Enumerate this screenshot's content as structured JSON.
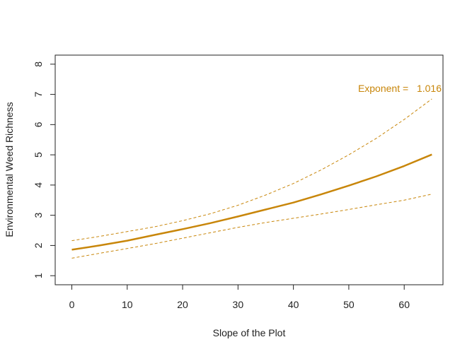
{
  "chart_data": {
    "type": "line",
    "title": "",
    "xlabel": "Slope of the Plot",
    "ylabel": "Environmental Weed Richness",
    "xlim": [
      -3,
      67
    ],
    "ylim": [
      0.7,
      8.3
    ],
    "x_ticks": [
      0,
      10,
      20,
      30,
      40,
      50,
      60
    ],
    "y_ticks": [
      1,
      2,
      3,
      4,
      5,
      6,
      7,
      8
    ],
    "grid": false,
    "color": "#C8860A",
    "annotation": {
      "label": "Exponent = ",
      "value": "1.016"
    },
    "fit_exponent": 1.016,
    "series": [
      {
        "role": "fit",
        "style": "solid",
        "x": [
          0,
          5,
          10,
          15,
          20,
          25,
          30,
          35,
          40,
          45,
          50,
          55,
          60,
          65
        ],
        "y": [
          1.86,
          2.0,
          2.16,
          2.35,
          2.54,
          2.74,
          2.96,
          3.19,
          3.42,
          3.69,
          3.98,
          4.29,
          4.63,
          5.01
        ]
      },
      {
        "role": "upper-ci",
        "style": "dashed",
        "x": [
          0,
          5,
          10,
          15,
          20,
          25,
          30,
          35,
          40,
          45,
          50,
          55,
          60,
          65
        ],
        "y": [
          2.16,
          2.3,
          2.46,
          2.62,
          2.82,
          3.05,
          3.33,
          3.67,
          4.05,
          4.5,
          5.0,
          5.55,
          6.17,
          6.85
        ]
      },
      {
        "role": "lower-ci",
        "style": "dashed",
        "x": [
          0,
          5,
          10,
          15,
          20,
          25,
          30,
          35,
          40,
          45,
          50,
          55,
          60,
          65
        ],
        "y": [
          1.58,
          1.74,
          1.9,
          2.06,
          2.24,
          2.42,
          2.6,
          2.76,
          2.9,
          3.04,
          3.19,
          3.35,
          3.5,
          3.7
        ]
      }
    ]
  }
}
